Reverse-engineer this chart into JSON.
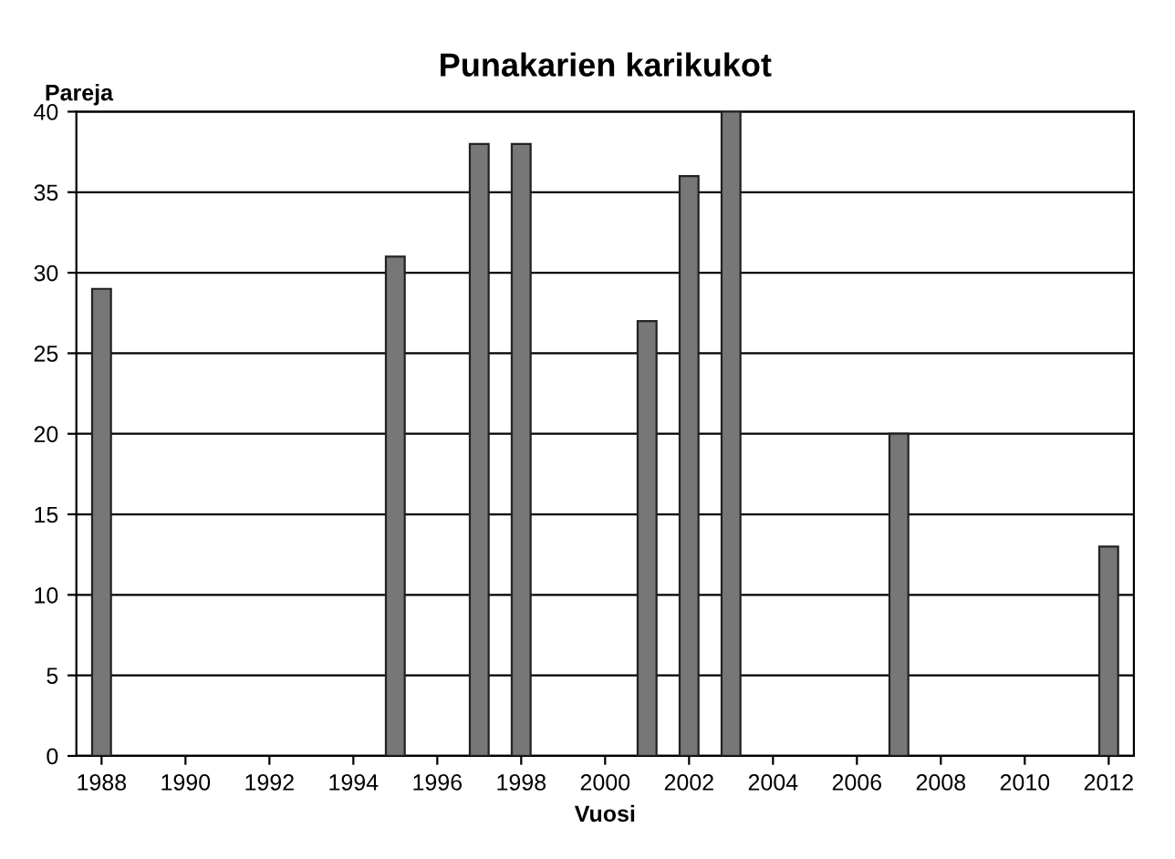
{
  "chart_data": {
    "type": "bar",
    "title": "Punakarien karikukot",
    "xlabel": "Vuosi",
    "ylabel": "Pareja",
    "categories": [
      "1988",
      null,
      "1990",
      null,
      "1992",
      null,
      "1994",
      null,
      "1996",
      null,
      "1998",
      null,
      "2000",
      null,
      "2002",
      null,
      "2004",
      null,
      "2006",
      null,
      "2008",
      null,
      "2010",
      null,
      "2012"
    ],
    "values": [
      29,
      null,
      null,
      null,
      null,
      null,
      null,
      31,
      null,
      38,
      38,
      null,
      null,
      27,
      36,
      40,
      null,
      null,
      null,
      20,
      null,
      null,
      null,
      null,
      13
    ],
    "color": "#777777",
    "ylim": [
      0,
      40
    ],
    "yticks": [
      0,
      5,
      10,
      15,
      20,
      25,
      30,
      35,
      40
    ],
    "grid": "y"
  }
}
